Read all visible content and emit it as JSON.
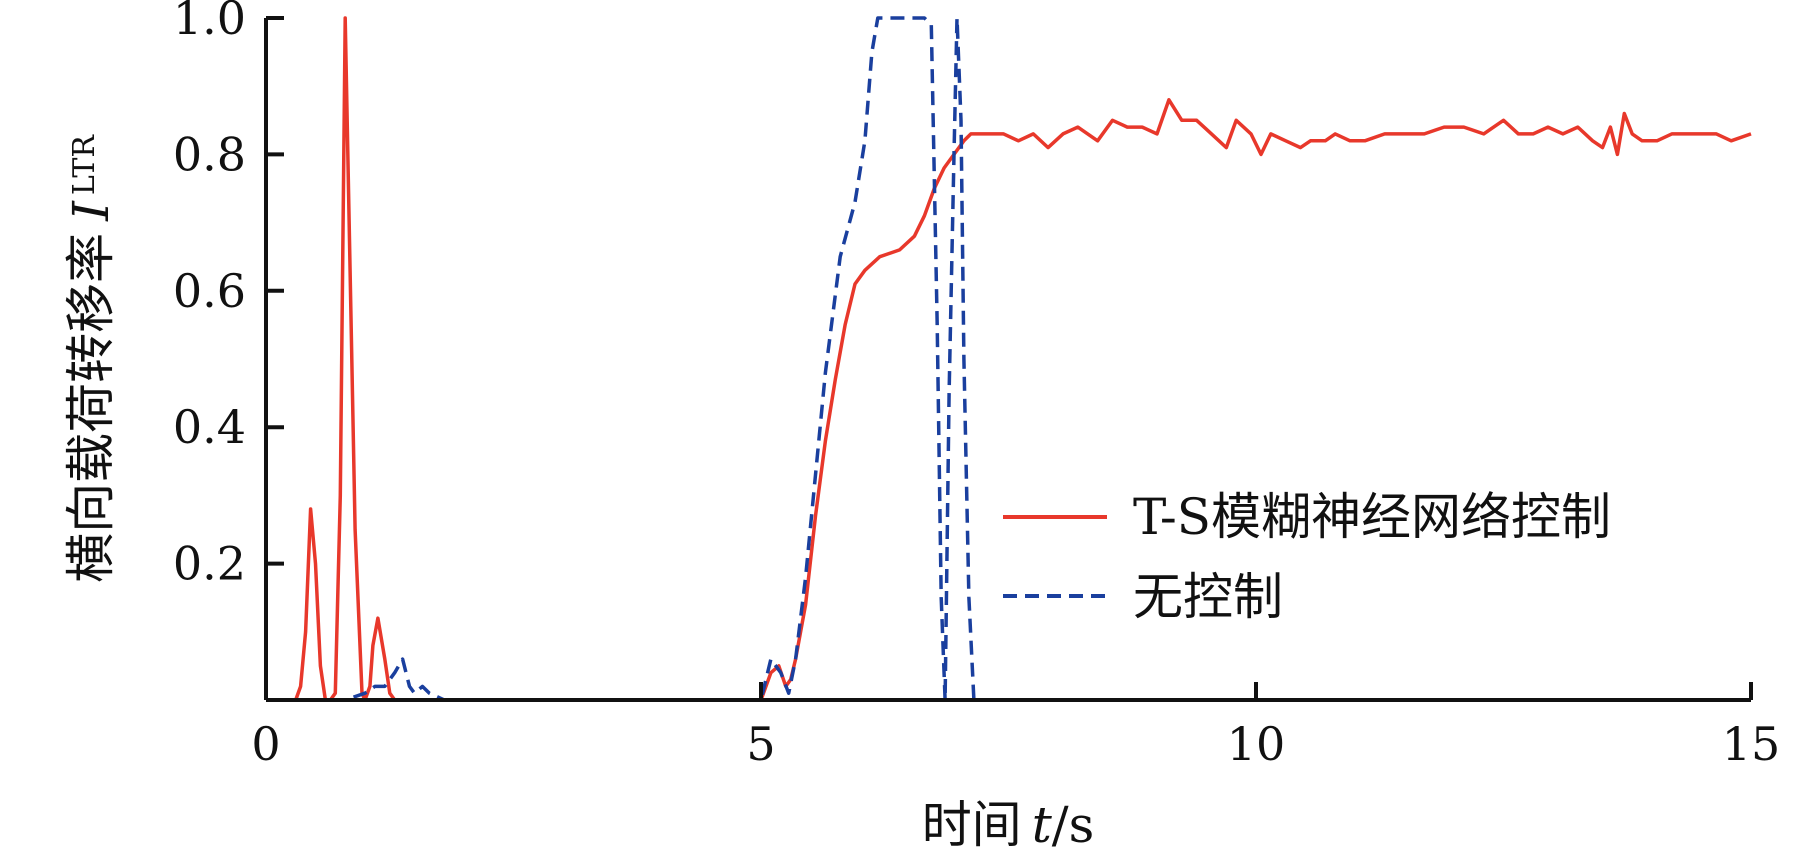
{
  "chart_data": {
    "type": "line",
    "xlabel": {
      "prefix": "时间",
      "var": "t",
      "unit": "s"
    },
    "ylabel": {
      "prefix": "横向载荷转移率",
      "var": "I",
      "sub": "LTR"
    },
    "xlim": [
      0,
      15
    ],
    "ylim": [
      0,
      1.0
    ],
    "x_ticks": [
      0,
      5,
      10,
      15
    ],
    "x_tick_labels": [
      "0",
      "5",
      "10",
      "15"
    ],
    "y_ticks": [
      0.2,
      0.4,
      0.6,
      0.8,
      1.0
    ],
    "y_tick_labels": [
      "0.2",
      "0.4",
      "0.6",
      "0.8",
      "1.0"
    ],
    "grid": false,
    "legend_position": "right",
    "series": [
      {
        "name": "T-S模糊神经网络控制",
        "color": "#e8382b",
        "style": "solid",
        "x": [
          0,
          0.3,
          0.35,
          0.4,
          0.45,
          0.5,
          0.55,
          0.6,
          0.65,
          0.7,
          0.75,
          0.8,
          0.9,
          0.97,
          1.0,
          1.05,
          1.08,
          1.13,
          1.2,
          1.25,
          1.3,
          1.35,
          1.42,
          1.5,
          1.55,
          1.6,
          1.7,
          2.0,
          3.0,
          4.0,
          5.0,
          5.1,
          5.18,
          5.25,
          5.3,
          5.35,
          5.45,
          5.55,
          5.65,
          5.75,
          5.85,
          5.95,
          6.05,
          6.2,
          6.4,
          6.55,
          6.65,
          6.75,
          6.85,
          6.95,
          7.05,
          7.12,
          7.2,
          7.3,
          7.45,
          7.6,
          7.75,
          7.9,
          8.05,
          8.2,
          8.4,
          8.55,
          8.7,
          8.85,
          9.0,
          9.12,
          9.25,
          9.4,
          9.55,
          9.7,
          9.8,
          9.95,
          10.05,
          10.15,
          10.3,
          10.45,
          10.55,
          10.7,
          10.8,
          10.95,
          11.1,
          11.3,
          11.5,
          11.7,
          11.9,
          12.1,
          12.3,
          12.5,
          12.65,
          12.8,
          12.95,
          13.1,
          13.25,
          13.4,
          13.5,
          13.58,
          13.65,
          13.72,
          13.8,
          13.9,
          14.05,
          14.2,
          14.35,
          14.5,
          14.65,
          14.8,
          15.0
        ],
        "y": [
          0,
          0,
          0.02,
          0.1,
          0.28,
          0.2,
          0.05,
          0.0,
          0.0,
          0.01,
          0.3,
          1.0,
          0.25,
          0.01,
          0.0,
          0.02,
          0.08,
          0.12,
          0.06,
          0.01,
          0.0,
          0.0,
          0.0,
          0.0,
          0.0,
          0.0,
          0.0,
          0.0,
          0.0,
          0.0,
          0.0,
          0.04,
          0.05,
          0.02,
          0.03,
          0.06,
          0.14,
          0.27,
          0.38,
          0.47,
          0.55,
          0.61,
          0.63,
          0.65,
          0.66,
          0.68,
          0.71,
          0.75,
          0.78,
          0.8,
          0.82,
          0.83,
          0.83,
          0.83,
          0.83,
          0.82,
          0.83,
          0.81,
          0.83,
          0.84,
          0.82,
          0.85,
          0.84,
          0.84,
          0.83,
          0.88,
          0.85,
          0.85,
          0.83,
          0.81,
          0.85,
          0.83,
          0.8,
          0.83,
          0.82,
          0.81,
          0.82,
          0.82,
          0.83,
          0.82,
          0.82,
          0.83,
          0.83,
          0.83,
          0.84,
          0.84,
          0.83,
          0.85,
          0.83,
          0.83,
          0.84,
          0.83,
          0.84,
          0.82,
          0.81,
          0.84,
          0.8,
          0.86,
          0.83,
          0.82,
          0.82,
          0.83,
          0.83,
          0.83,
          0.83,
          0.82,
          0.83
        ]
      },
      {
        "name": "无控制",
        "color": "#1a3f9e",
        "style": "dashed",
        "x": [
          0,
          0.5,
          0.8,
          1.0,
          1.1,
          1.2,
          1.3,
          1.38,
          1.45,
          1.5,
          1.58,
          1.65,
          1.8,
          2.5,
          4.0,
          5.0,
          5.1,
          5.2,
          5.28,
          5.35,
          5.45,
          5.55,
          5.65,
          5.8,
          5.95,
          6.05,
          6.12,
          6.18,
          6.3,
          6.5,
          6.65,
          6.72,
          6.78,
          6.82,
          6.86,
          6.9,
          6.95,
          6.98,
          7.02,
          7.05,
          7.1,
          7.15
        ],
        "y": [
          0,
          0,
          0.0,
          0.01,
          0.02,
          0.02,
          0.04,
          0.06,
          0.02,
          0.01,
          0.02,
          0.01,
          0.0,
          0.0,
          0.0,
          0.0,
          0.06,
          0.04,
          0.01,
          0.06,
          0.18,
          0.33,
          0.48,
          0.65,
          0.73,
          0.82,
          0.95,
          1.0,
          1.0,
          1.0,
          1.0,
          0.99,
          0.55,
          0.15,
          0.0,
          0.45,
          0.8,
          1.0,
          0.85,
          0.5,
          0.15,
          0.0
        ]
      }
    ]
  }
}
